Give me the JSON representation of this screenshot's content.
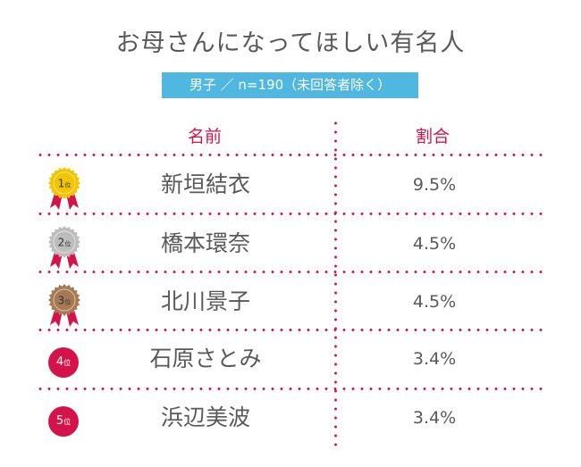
{
  "title": "お母さんになってほしい有名人",
  "subtitle": "男子 ／ n=190（未回答者除く）",
  "chart_data": {
    "type": "table",
    "columns": [
      "名前",
      "割合"
    ],
    "rows": [
      {
        "rank_num": "1",
        "rank_suffix": "位",
        "name": "新垣結衣",
        "share": "9.5%",
        "value": 9.5,
        "badge": "gold",
        "badge_color": "#f2c500"
      },
      {
        "rank_num": "2",
        "rank_suffix": "位",
        "name": "橋本環奈",
        "share": "4.5%",
        "value": 4.5,
        "badge": "silver",
        "badge_color": "#bdbdbd"
      },
      {
        "rank_num": "3",
        "rank_suffix": "位",
        "name": "北川景子",
        "share": "4.5%",
        "value": 4.5,
        "badge": "bronze",
        "badge_color": "#a67a52"
      },
      {
        "rank_num": "4",
        "rank_suffix": "位",
        "name": "石原さとみ",
        "share": "3.4%",
        "value": 3.4,
        "badge": "circle",
        "badge_color": "#d4134a"
      },
      {
        "rank_num": "5",
        "rank_suffix": "位",
        "name": "浜辺美波",
        "share": "3.4%",
        "value": 3.4,
        "badge": "circle",
        "badge_color": "#d4134a"
      }
    ]
  }
}
